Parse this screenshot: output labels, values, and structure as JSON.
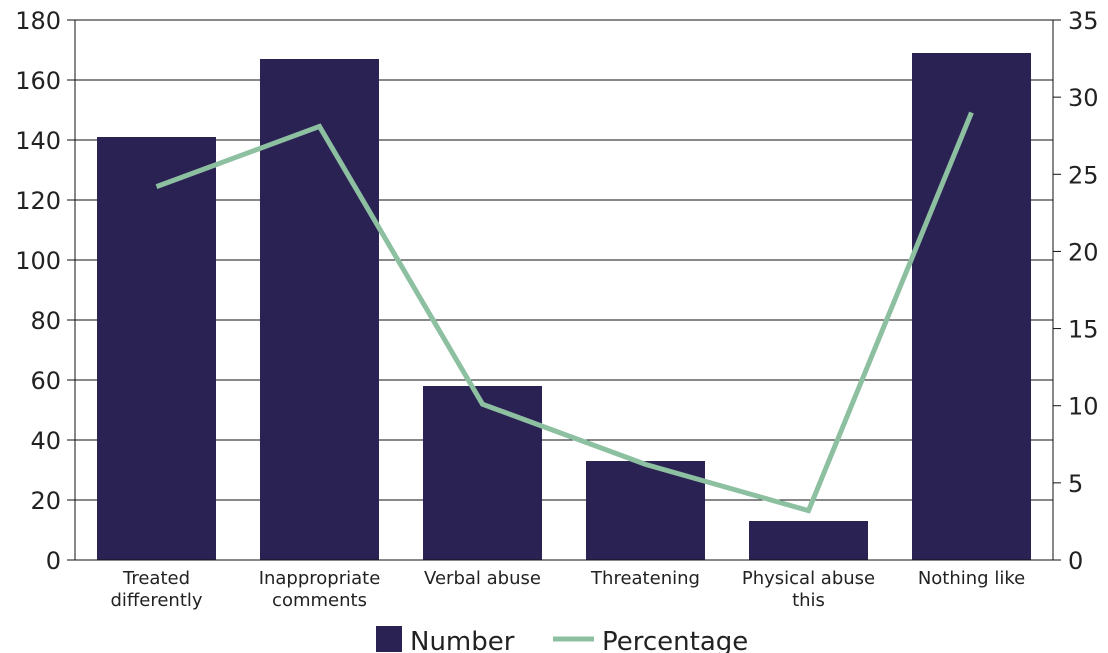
{
  "chart_data": {
    "type": "bar",
    "categories": [
      [
        "Treated",
        "differently"
      ],
      [
        "Inappropriate",
        "comments"
      ],
      [
        "Verbal abuse"
      ],
      [
        "Threatening"
      ],
      [
        "Physical abuse",
        "this"
      ],
      [
        "Nothing like"
      ]
    ],
    "series": [
      {
        "name": "Number",
        "type": "bar",
        "axis": "left",
        "values": [
          141,
          167,
          58,
          33,
          13,
          169
        ]
      },
      {
        "name": "Percentage",
        "type": "line",
        "axis": "right",
        "values": [
          24.2,
          28.1,
          10.1,
          6.2,
          3.2,
          29.0
        ]
      }
    ],
    "y_left": {
      "min": 0,
      "max": 180,
      "ticks": [
        0,
        20,
        40,
        60,
        80,
        100,
        120,
        140,
        160,
        180
      ]
    },
    "y_right": {
      "min": 0,
      "max": 35,
      "ticks": [
        0,
        5,
        10,
        15,
        20,
        25,
        30,
        35
      ]
    },
    "grid": true,
    "legend_position": "bottom",
    "colors": {
      "bar": "#2b2254",
      "line": "#8cc0a0",
      "grid": "#111111"
    }
  }
}
